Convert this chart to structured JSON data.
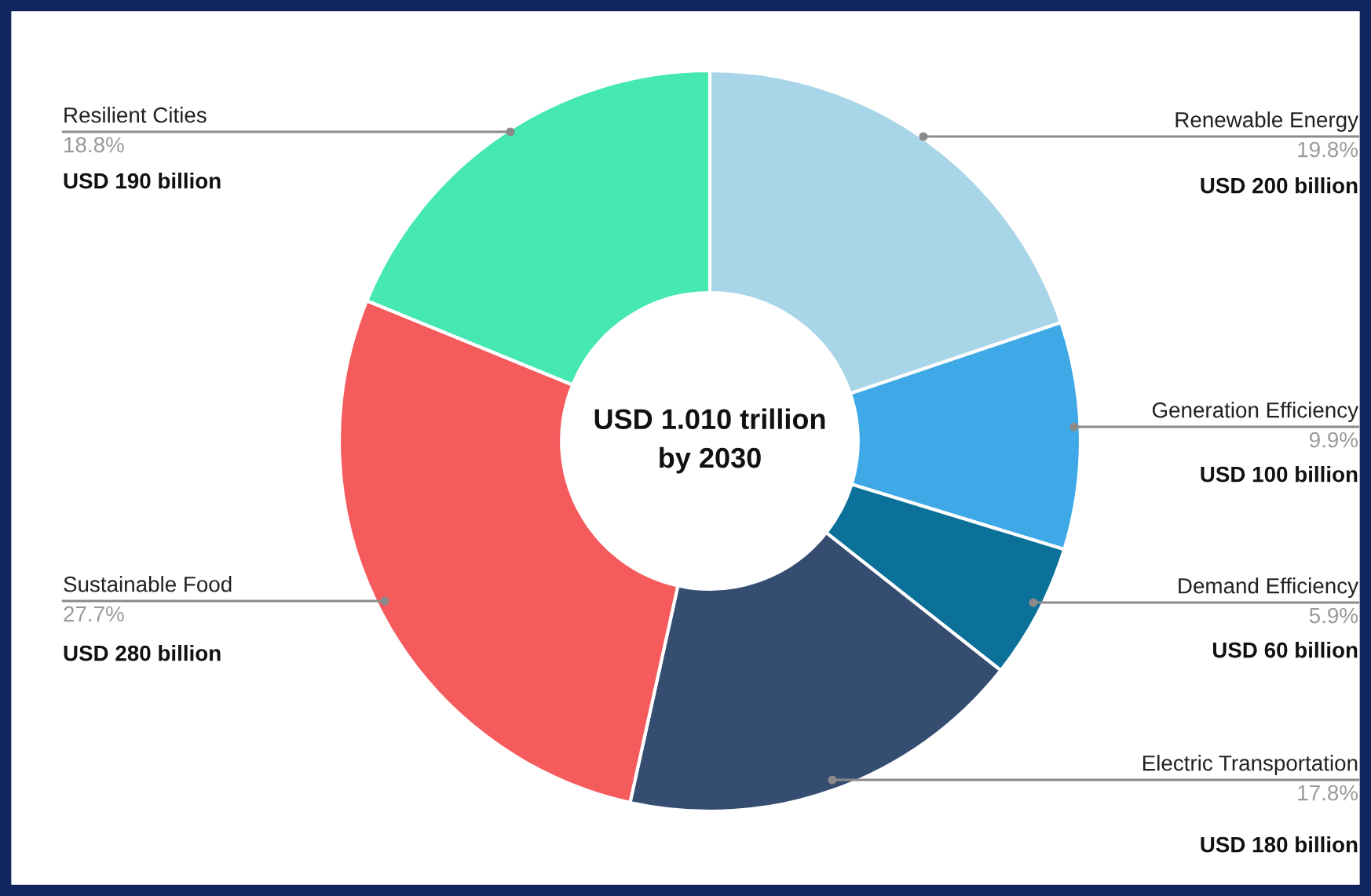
{
  "chart_data": {
    "type": "donut",
    "categories": [
      "Renewable Energy",
      "Generation Efficiency",
      "Demand Efficiency",
      "Electric Transportation",
      "Sustainable Food",
      "Resilient Cities"
    ],
    "values": [
      19.8,
      9.9,
      5.9,
      17.8,
      27.7,
      18.8
    ],
    "colors": [
      "#a8d5e8",
      "#3ea9e6",
      "#0b7199",
      "#344d70",
      "#f55a5c",
      "#45e8b0"
    ],
    "value_labels": [
      "19.8%",
      "9.9%",
      "5.9%",
      "17.8%",
      "27.7%",
      "18.8%"
    ],
    "annotations": [
      "USD 1.010 trillion\nby 2030",
      {
        "text": "USD 200 billion",
        "x": "Renewable Energy"
      },
      {
        "text": "USD 100 billion",
        "x": "Generation Efficiency"
      },
      {
        "text": "USD 60 billion",
        "x": "Demand Efficiency"
      },
      {
        "text": "USD 180 billion",
        "x": "Electric Transportation"
      },
      {
        "text": "USD 280 billion",
        "x": "Sustainable Food"
      },
      {
        "text": "USD 190 billion",
        "x": "Resilient Cities"
      }
    ],
    "legend": false
  }
}
